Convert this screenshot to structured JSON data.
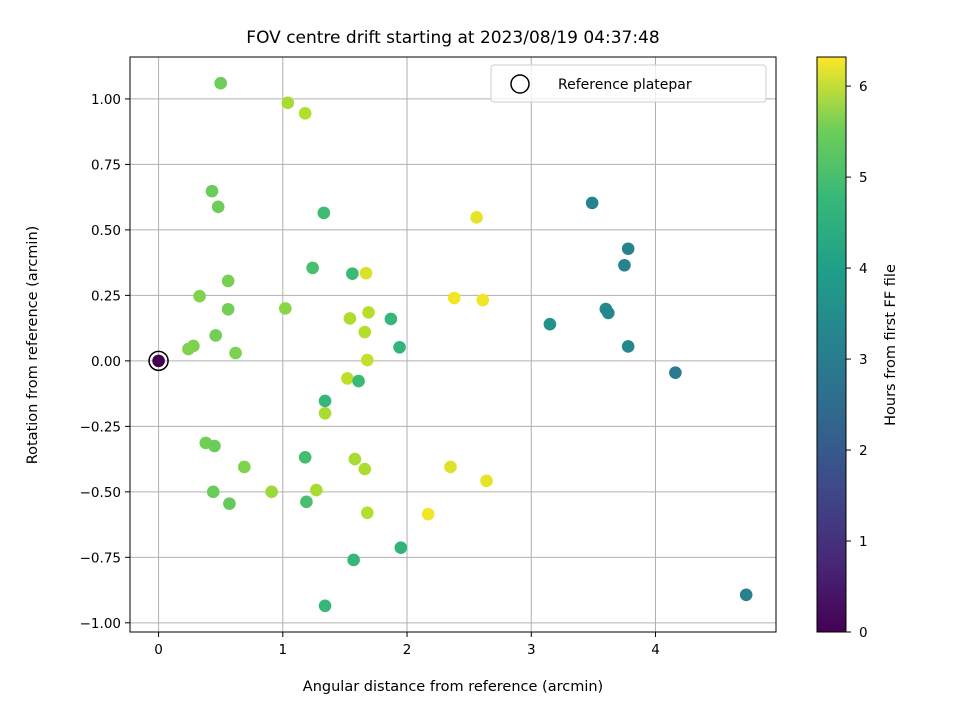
{
  "chart_data": {
    "type": "scatter",
    "title": "FOV centre drift starting at 2023/08/19 04:37:48",
    "xlabel": "Angular distance from reference (arcmin)",
    "ylabel": "Rotation from reference (arcmin)",
    "xlim": [
      -0.23,
      4.97
    ],
    "ylim": [
      -1.035,
      1.16
    ],
    "xticks": [
      0,
      1,
      2,
      3,
      4
    ],
    "xtick_labels": [
      "0",
      "1",
      "2",
      "3",
      "4"
    ],
    "yticks": [
      1.0,
      0.75,
      0.5,
      0.25,
      0.0,
      -0.25,
      -0.5,
      -0.75,
      -1.0
    ],
    "ytick_labels": [
      "1.00",
      "0.75",
      "0.50",
      "0.25",
      "0.00",
      "−0.25",
      "−0.50",
      "−0.75",
      "−1.00"
    ],
    "grid": true,
    "legend": {
      "entries": [
        "Reference platepar"
      ],
      "location": "upper right"
    },
    "colorbar": {
      "label": "Hours from first FF file",
      "colormap": "viridis",
      "range": [
        0,
        6.32
      ],
      "ticks": [
        0,
        1,
        2,
        3,
        4,
        5,
        6
      ],
      "tick_labels": [
        "0",
        "1",
        "2",
        "3",
        "4",
        "5",
        "6"
      ]
    },
    "reference_point": {
      "x": 0.0,
      "y": 0.0,
      "c": 0.0
    },
    "series": [
      {
        "points": [
          {
            "x": 0.5,
            "y": 1.06,
            "c": 4.9
          },
          {
            "x": 1.04,
            "y": 0.985,
            "c": 5.5
          },
          {
            "x": 1.18,
            "y": 0.945,
            "c": 5.6
          },
          {
            "x": 0.43,
            "y": 0.648,
            "c": 4.85
          },
          {
            "x": 0.48,
            "y": 0.588,
            "c": 4.9
          },
          {
            "x": 1.33,
            "y": 0.565,
            "c": 4.35
          },
          {
            "x": 3.49,
            "y": 0.603,
            "c": 2.85
          },
          {
            "x": 2.56,
            "y": 0.548,
            "c": 6.1
          },
          {
            "x": 3.78,
            "y": 0.428,
            "c": 2.8
          },
          {
            "x": 3.75,
            "y": 0.365,
            "c": 2.85
          },
          {
            "x": 1.24,
            "y": 0.355,
            "c": 4.45
          },
          {
            "x": 1.56,
            "y": 0.333,
            "c": 4.3
          },
          {
            "x": 1.67,
            "y": 0.335,
            "c": 5.95
          },
          {
            "x": 0.56,
            "y": 0.305,
            "c": 5.0
          },
          {
            "x": 0.33,
            "y": 0.247,
            "c": 5.1
          },
          {
            "x": 2.38,
            "y": 0.24,
            "c": 6.2
          },
          {
            "x": 2.61,
            "y": 0.232,
            "c": 6.2
          },
          {
            "x": 0.56,
            "y": 0.197,
            "c": 4.95
          },
          {
            "x": 1.02,
            "y": 0.2,
            "c": 5.2
          },
          {
            "x": 3.6,
            "y": 0.198,
            "c": 3.0
          },
          {
            "x": 3.62,
            "y": 0.183,
            "c": 2.9
          },
          {
            "x": 1.69,
            "y": 0.185,
            "c": 5.65
          },
          {
            "x": 1.54,
            "y": 0.162,
            "c": 5.55
          },
          {
            "x": 1.87,
            "y": 0.16,
            "c": 4.2
          },
          {
            "x": 3.15,
            "y": 0.14,
            "c": 3.2
          },
          {
            "x": 1.66,
            "y": 0.11,
            "c": 5.6
          },
          {
            "x": 0.46,
            "y": 0.097,
            "c": 4.95
          },
          {
            "x": 0.28,
            "y": 0.057,
            "c": 5.05
          },
          {
            "x": 0.24,
            "y": 0.045,
            "c": 5.1
          },
          {
            "x": 3.78,
            "y": 0.055,
            "c": 2.95
          },
          {
            "x": 1.94,
            "y": 0.052,
            "c": 4.15
          },
          {
            "x": 0.62,
            "y": 0.03,
            "c": 5.05
          },
          {
            "x": 1.68,
            "y": 0.003,
            "c": 5.75
          },
          {
            "x": 4.16,
            "y": -0.045,
            "c": 2.6
          },
          {
            "x": 1.52,
            "y": -0.067,
            "c": 5.7
          },
          {
            "x": 1.61,
            "y": -0.077,
            "c": 4.3
          },
          {
            "x": 1.34,
            "y": -0.153,
            "c": 4.2
          },
          {
            "x": 1.34,
            "y": -0.2,
            "c": 5.5
          },
          {
            "x": 0.38,
            "y": -0.313,
            "c": 4.95
          },
          {
            "x": 0.45,
            "y": -0.325,
            "c": 4.85
          },
          {
            "x": 1.18,
            "y": -0.368,
            "c": 4.4
          },
          {
            "x": 1.58,
            "y": -0.375,
            "c": 5.5
          },
          {
            "x": 0.69,
            "y": -0.405,
            "c": 5.1
          },
          {
            "x": 1.66,
            "y": -0.413,
            "c": 5.55
          },
          {
            "x": 2.35,
            "y": -0.405,
            "c": 6.0
          },
          {
            "x": 2.64,
            "y": -0.458,
            "c": 6.1
          },
          {
            "x": 0.44,
            "y": -0.5,
            "c": 4.85
          },
          {
            "x": 0.91,
            "y": -0.5,
            "c": 5.35
          },
          {
            "x": 1.27,
            "y": -0.493,
            "c": 5.5
          },
          {
            "x": 1.19,
            "y": -0.538,
            "c": 4.45
          },
          {
            "x": 0.57,
            "y": -0.545,
            "c": 4.8
          },
          {
            "x": 1.68,
            "y": -0.58,
            "c": 5.6
          },
          {
            "x": 2.17,
            "y": -0.585,
            "c": 6.2
          },
          {
            "x": 1.95,
            "y": -0.713,
            "c": 4.1
          },
          {
            "x": 1.57,
            "y": -0.76,
            "c": 4.2
          },
          {
            "x": 4.73,
            "y": -0.893,
            "c": 2.75
          },
          {
            "x": 1.34,
            "y": -0.935,
            "c": 4.2
          }
        ]
      }
    ]
  }
}
